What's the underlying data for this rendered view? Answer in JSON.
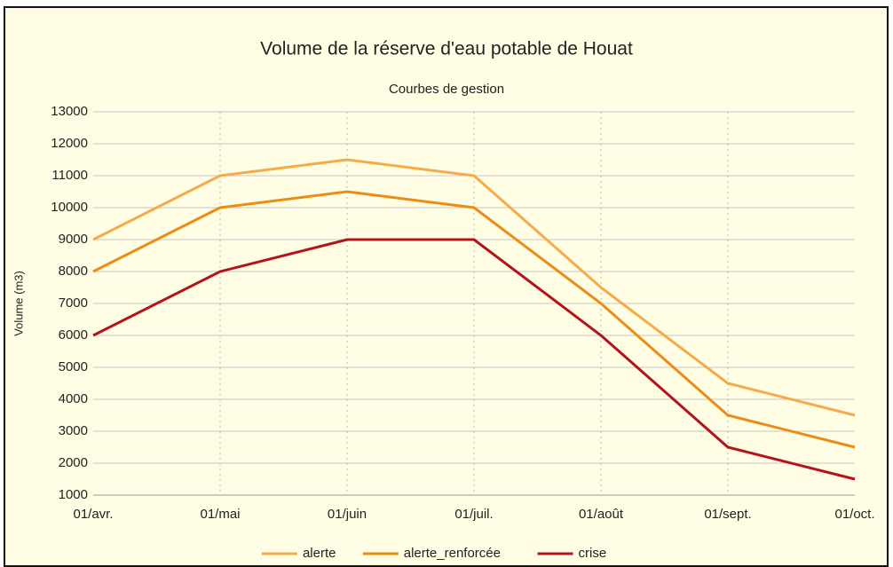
{
  "chart_data": {
    "type": "line",
    "title": "Volume de la réserve d'eau potable de Houat",
    "subtitle": "Courbes de gestion",
    "y_label": "Volume (m3)",
    "categories": [
      "01/avr.",
      "01/mai",
      "01/juin",
      "01/juil.",
      "01/août",
      "01/sept.",
      "01/oct."
    ],
    "series": [
      {
        "name": "alerte",
        "color": "#f5ab4a",
        "values": [
          9000,
          11000,
          11500,
          11000,
          7500,
          4500,
          3500
        ]
      },
      {
        "name": "alerte_renforcée",
        "color": "#ec8c14",
        "values": [
          8000,
          10000,
          10500,
          10000,
          7000,
          3500,
          2500
        ]
      },
      {
        "name": "crise",
        "color": "#b3141c",
        "values": [
          6000,
          8000,
          9000,
          9000,
          6000,
          2500,
          1500
        ]
      }
    ],
    "ylim": [
      1000,
      13000
    ],
    "yticks": [
      1000,
      2000,
      3000,
      4000,
      5000,
      6000,
      7000,
      8000,
      9000,
      10000,
      11000,
      12000,
      13000
    ],
    "grid": true,
    "legend": "bottom"
  }
}
